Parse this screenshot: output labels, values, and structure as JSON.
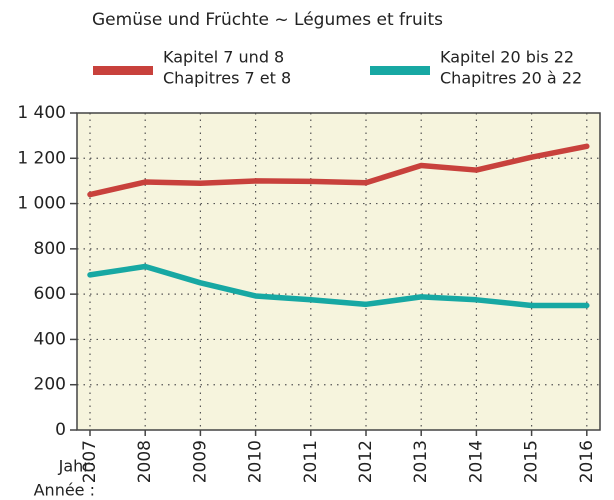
{
  "chart_data": {
    "type": "line",
    "title": "Gemüse und Früchte ~ Légumes et fruits",
    "xlabel": [
      "Jahr:",
      "Année :"
    ],
    "categories": [
      "2007",
      "2008",
      "2009",
      "2010",
      "2011",
      "2012",
      "2013",
      "2014",
      "2015",
      "2016"
    ],
    "series": [
      {
        "name": [
          "Kapitel 7 und 8",
          "Chapitres 7 et 8"
        ],
        "color": "#c8413c",
        "values": [
          1040,
          1095,
          1090,
          1100,
          1098,
          1092,
          1168,
          1148,
          1205,
          1253
        ]
      },
      {
        "name": [
          "Kapitel 20 bis 22",
          "Chapitres 20 à 22"
        ],
        "color": "#17a8a3",
        "values": [
          685,
          722,
          650,
          592,
          575,
          555,
          588,
          575,
          550,
          550
        ]
      }
    ],
    "ylim": [
      0,
      1400
    ],
    "yticks": [
      0,
      200,
      400,
      600,
      800,
      {
        "value": 1000,
        "label": "1 000"
      },
      {
        "value": 1200,
        "label": "1 200"
      },
      {
        "value": 1400,
        "label": "1 400"
      }
    ],
    "grid": true
  }
}
